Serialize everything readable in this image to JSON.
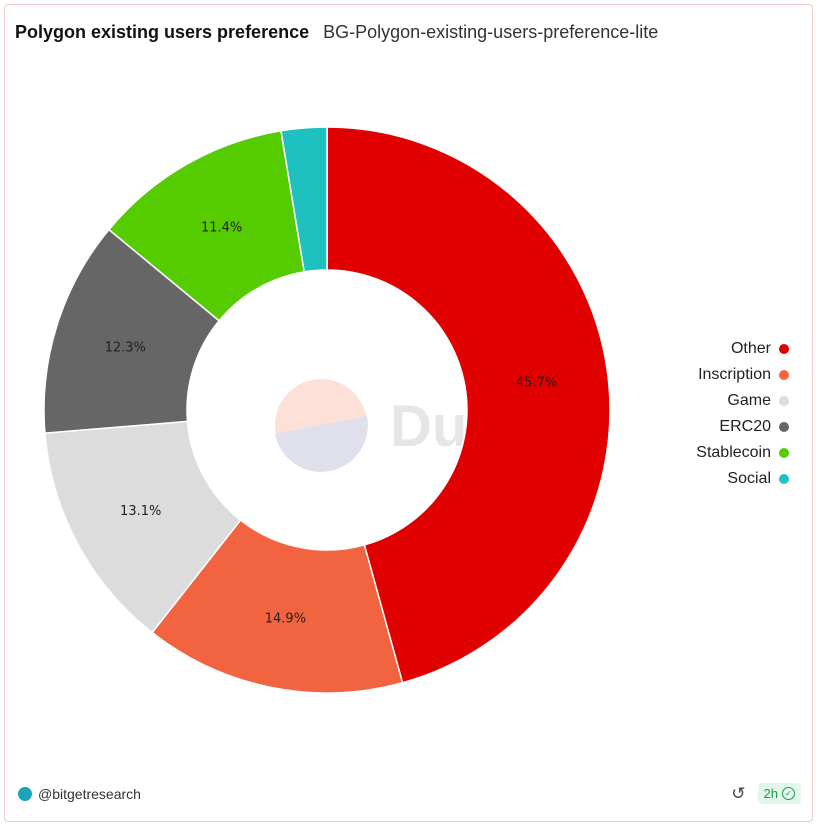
{
  "header": {
    "title": "Polygon existing users preference",
    "subtitle": "BG-Polygon-existing-users-preference-lite"
  },
  "watermark": {
    "text": "Dune"
  },
  "chart_data": {
    "type": "pie",
    "donut": true,
    "legend_position": "right",
    "slices": [
      {
        "label": "Other",
        "value": 45.7,
        "color": "#e00000",
        "show_label": true
      },
      {
        "label": "Inscription",
        "value": 14.9,
        "color": "#f26440",
        "show_label": true
      },
      {
        "label": "Game",
        "value": 13.1,
        "color": "#dcdcdc",
        "show_label": true
      },
      {
        "label": "ERC20",
        "value": 12.3,
        "color": "#666666",
        "show_label": true
      },
      {
        "label": "Stablecoin",
        "value": 11.4,
        "color": "#55cc00",
        "show_label": true
      },
      {
        "label": "Social",
        "value": 2.6,
        "color": "#1fc0c0",
        "show_label": false
      }
    ]
  },
  "footer": {
    "user": "@bitgetresearch",
    "refresh_icon": "refresh-icon",
    "age_badge": "2h"
  }
}
